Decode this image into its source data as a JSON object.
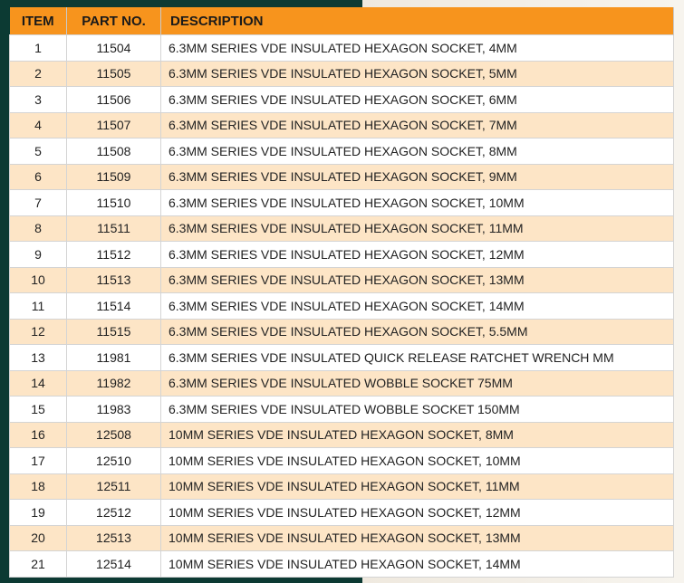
{
  "table": {
    "header": [
      "ITEM",
      "PART NO.",
      "DESCRIPTION"
    ],
    "rows": [
      [
        "1",
        "11504",
        "6.3MM SERIES VDE INSULATED HEXAGON SOCKET, 4MM"
      ],
      [
        "2",
        "11505",
        "6.3MM SERIES VDE INSULATED HEXAGON SOCKET, 5MM"
      ],
      [
        "3",
        "11506",
        "6.3MM SERIES VDE INSULATED HEXAGON SOCKET, 6MM"
      ],
      [
        "4",
        "11507",
        "6.3MM SERIES VDE INSULATED HEXAGON SOCKET, 7MM"
      ],
      [
        "5",
        "11508",
        "6.3MM SERIES VDE INSULATED HEXAGON SOCKET, 8MM"
      ],
      [
        "6",
        "11509",
        "6.3MM SERIES VDE INSULATED HEXAGON SOCKET, 9MM"
      ],
      [
        "7",
        "11510",
        "6.3MM SERIES VDE INSULATED HEXAGON SOCKET, 10MM"
      ],
      [
        "8",
        "11511",
        "6.3MM SERIES VDE INSULATED HEXAGON SOCKET, 11MM"
      ],
      [
        "9",
        "11512",
        "6.3MM SERIES VDE INSULATED HEXAGON SOCKET, 12MM"
      ],
      [
        "10",
        "11513",
        "6.3MM SERIES VDE INSULATED HEXAGON SOCKET, 13MM"
      ],
      [
        "11",
        "11514",
        "6.3MM SERIES VDE INSULATED HEXAGON SOCKET, 14MM"
      ],
      [
        "12",
        "11515",
        "6.3MM SERIES VDE INSULATED HEXAGON SOCKET, 5.5MM"
      ],
      [
        "13",
        "11981",
        "6.3MM SERIES VDE INSULATED QUICK RELEASE RATCHET WRENCH MM"
      ],
      [
        "14",
        "11982",
        "6.3MM SERIES VDE INSULATED WOBBLE SOCKET 75MM"
      ],
      [
        "15",
        "11983",
        "6.3MM SERIES VDE INSULATED WOBBLE SOCKET 150MM"
      ],
      [
        "16",
        "12508",
        "10MM SERIES VDE INSULATED HEXAGON SOCKET, 8MM"
      ],
      [
        "17",
        "12510",
        "10MM SERIES VDE INSULATED HEXAGON SOCKET, 10MM"
      ],
      [
        "18",
        "12511",
        "10MM SERIES VDE INSULATED HEXAGON SOCKET, 11MM"
      ],
      [
        "19",
        "12512",
        "10MM SERIES VDE INSULATED HEXAGON SOCKET, 12MM"
      ],
      [
        "20",
        "12513",
        "10MM SERIES VDE INSULATED HEXAGON SOCKET, 13MM"
      ],
      [
        "21",
        "12514",
        "10MM SERIES VDE INSULATED HEXAGON SOCKET, 14MM"
      ]
    ]
  }
}
